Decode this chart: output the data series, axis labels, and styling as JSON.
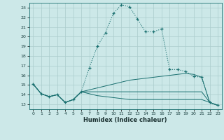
{
  "xlabel": "Humidex (Indice chaleur)",
  "bg_color": "#cce8e8",
  "grid_color": "#aacccc",
  "line_color": "#1a7070",
  "xlim": [
    -0.5,
    23.5
  ],
  "ylim": [
    12.5,
    23.5
  ],
  "x_ticks": [
    0,
    1,
    2,
    3,
    4,
    5,
    6,
    7,
    8,
    9,
    10,
    11,
    12,
    13,
    14,
    15,
    16,
    17,
    18,
    19,
    20,
    21,
    22,
    23
  ],
  "y_ticks": [
    13,
    14,
    15,
    16,
    17,
    18,
    19,
    20,
    21,
    22,
    23
  ],
  "series_dotted": [
    15.1,
    14.1,
    13.8,
    14.0,
    13.2,
    13.5,
    14.3,
    16.8,
    19.0,
    20.4,
    22.4,
    23.3,
    23.1,
    21.8,
    20.5,
    20.5,
    20.8,
    16.6,
    16.6,
    16.4,
    15.9,
    15.8,
    13.2,
    12.9
  ],
  "series2": [
    15.1,
    14.1,
    13.8,
    14.0,
    13.2,
    13.5,
    14.3,
    14.5,
    14.7,
    14.9,
    15.1,
    15.3,
    15.5,
    15.6,
    15.7,
    15.8,
    15.9,
    16.0,
    16.1,
    16.2,
    16.1,
    15.8,
    13.2,
    12.9
  ],
  "series3": [
    15.1,
    14.1,
    13.8,
    14.0,
    13.2,
    13.5,
    14.3,
    14.3,
    14.3,
    14.3,
    14.3,
    14.3,
    14.3,
    14.3,
    14.3,
    14.3,
    14.3,
    14.3,
    14.3,
    14.3,
    14.3,
    14.3,
    13.2,
    12.9
  ],
  "series4": [
    15.1,
    14.1,
    13.8,
    14.0,
    13.2,
    13.5,
    14.3,
    14.1,
    13.9,
    13.8,
    13.7,
    13.6,
    13.5,
    13.5,
    13.5,
    13.5,
    13.5,
    13.5,
    13.5,
    13.5,
    13.5,
    13.5,
    13.2,
    12.9
  ]
}
